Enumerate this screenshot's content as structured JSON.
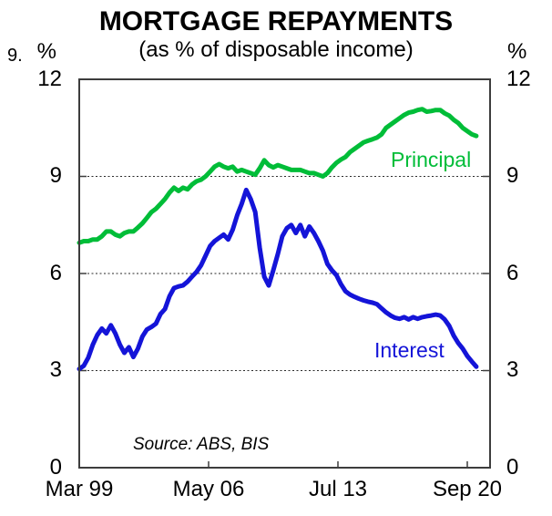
{
  "figure_number": "9.",
  "header": {
    "title": "MORTGAGE REPAYMENTS",
    "subtitle": "(as % of disposable income)"
  },
  "y_axis": {
    "unit_left": "%",
    "unit_right": "%",
    "ticks": [
      "12",
      "9",
      "6",
      "3",
      "0"
    ]
  },
  "x_axis": {
    "labels": [
      "Mar 99",
      "May 06",
      "Jul 13",
      "Sep 20"
    ]
  },
  "series_labels": {
    "principal": "Principal",
    "interest": "Interest"
  },
  "source": "Source: ABS, BIS",
  "colors": {
    "principal": "#00bd38",
    "interest": "#1414d8",
    "frame": "#3d3d3d",
    "grid": "#2a2a2a"
  },
  "chart_data": {
    "type": "line",
    "title": "MORTGAGE REPAYMENTS",
    "subtitle": "(as % of disposable income)",
    "ylabel": "%",
    "ylim": [
      0,
      12
    ],
    "y_gridlines": [
      3,
      6,
      9
    ],
    "grid_style": "dotted",
    "x_tick_labels": [
      "Mar 99",
      "May 06",
      "Jul 13",
      "Sep 20"
    ],
    "x_start": "Mar 1999",
    "x_end": "Mar 2021",
    "x_frequency": "quarterly",
    "x_months_start_to_last_tick": 258,
    "legend_position": "inline-labels",
    "series": [
      {
        "name": "Principal",
        "color": "#00bd38",
        "values": [
          6.95,
          7.0,
          7.0,
          7.05,
          7.05,
          7.15,
          7.3,
          7.3,
          7.2,
          7.15,
          7.25,
          7.3,
          7.3,
          7.42,
          7.55,
          7.72,
          7.9,
          8.0,
          8.15,
          8.3,
          8.5,
          8.65,
          8.55,
          8.65,
          8.6,
          8.75,
          8.85,
          8.9,
          9.0,
          9.15,
          9.3,
          9.38,
          9.3,
          9.25,
          9.3,
          9.15,
          9.2,
          9.15,
          9.1,
          9.05,
          9.25,
          9.5,
          9.35,
          9.28,
          9.35,
          9.3,
          9.25,
          9.2,
          9.2,
          9.2,
          9.15,
          9.1,
          9.1,
          9.05,
          9.0,
          9.1,
          9.28,
          9.42,
          9.52,
          9.6,
          9.75,
          9.85,
          9.95,
          10.05,
          10.1,
          10.15,
          10.2,
          10.3,
          10.5,
          10.6,
          10.7,
          10.8,
          10.9,
          10.97,
          11.0,
          11.05,
          11.08,
          11.0,
          11.02,
          11.05,
          11.05,
          10.95,
          10.88,
          10.75,
          10.65,
          10.5,
          10.4,
          10.3,
          10.25
        ]
      },
      {
        "name": "Interest",
        "color": "#1414d8",
        "values": [
          3.05,
          3.15,
          3.4,
          3.8,
          4.1,
          4.3,
          4.15,
          4.4,
          4.15,
          3.8,
          3.55,
          3.72,
          3.42,
          3.68,
          4.05,
          4.27,
          4.35,
          4.45,
          4.75,
          4.9,
          5.3,
          5.55,
          5.6,
          5.63,
          5.75,
          5.9,
          6.05,
          6.25,
          6.55,
          6.85,
          7.0,
          7.1,
          7.2,
          7.05,
          7.35,
          7.8,
          8.15,
          8.58,
          8.3,
          7.9,
          6.8,
          5.9,
          5.63,
          6.1,
          6.6,
          7.15,
          7.4,
          7.5,
          7.25,
          7.5,
          7.15,
          7.45,
          7.25,
          7.0,
          6.7,
          6.3,
          6.1,
          5.95,
          5.67,
          5.45,
          5.35,
          5.28,
          5.22,
          5.17,
          5.13,
          5.1,
          5.05,
          4.92,
          4.8,
          4.7,
          4.63,
          4.6,
          4.65,
          4.58,
          4.65,
          4.6,
          4.65,
          4.68,
          4.7,
          4.73,
          4.7,
          4.58,
          4.38,
          4.08,
          3.85,
          3.68,
          3.45,
          3.28,
          3.12
        ]
      }
    ]
  }
}
